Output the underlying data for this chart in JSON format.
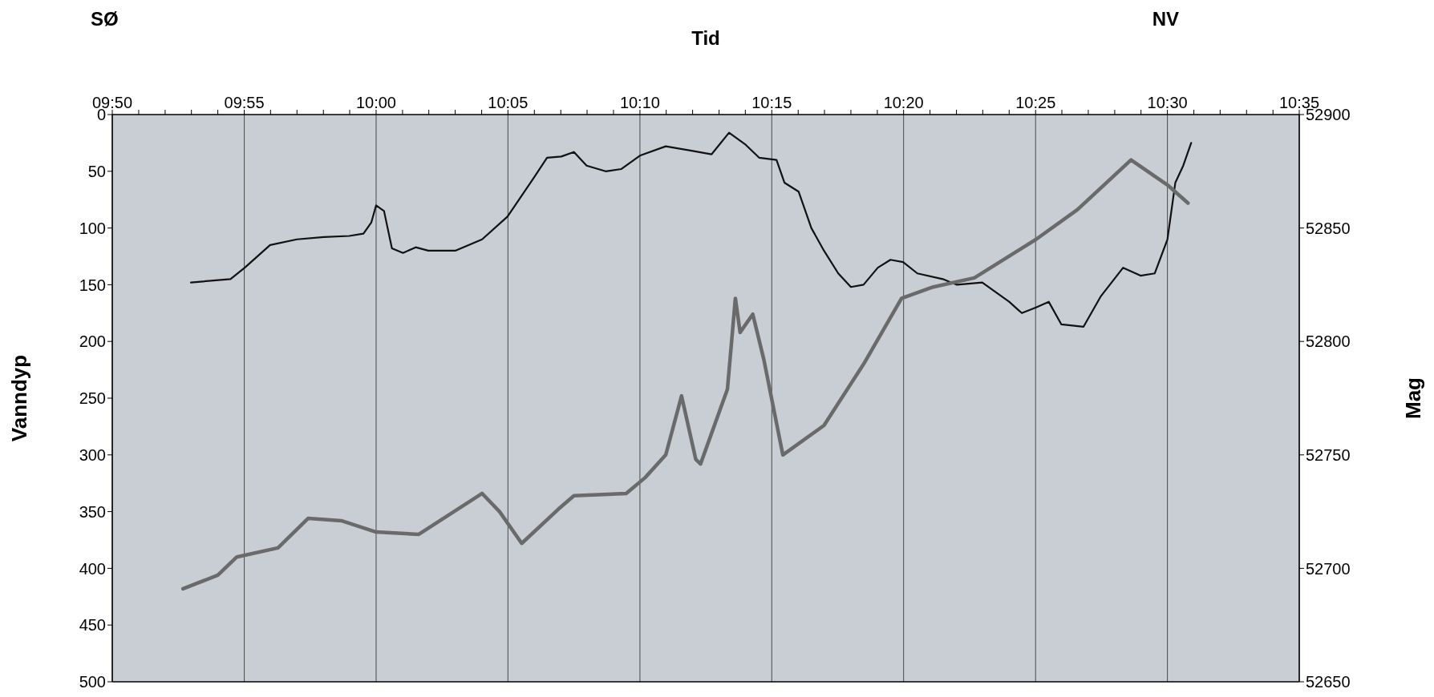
{
  "chart_data": {
    "type": "line",
    "xlabel": "Tid",
    "ylabel": "Vanndyp",
    "y2label": "Mag",
    "annotations": [
      "SØ",
      "NV"
    ],
    "xlim": [
      9.8333,
      10.5833
    ],
    "xticks": [
      {
        "value": 9.8333,
        "label": "09:50"
      },
      {
        "value": 9.85,
        "label": null
      },
      {
        "value": 9.8667,
        "label": null
      },
      {
        "value": 9.8833,
        "label": null
      },
      {
        "value": 9.9,
        "label": null
      },
      {
        "value": 9.9167,
        "label": "09:55"
      },
      {
        "value": 9.9333,
        "label": null
      },
      {
        "value": 9.95,
        "label": null
      },
      {
        "value": 9.9667,
        "label": null
      },
      {
        "value": 9.9833,
        "label": null
      },
      {
        "value": 10,
        "label": "10:00"
      },
      {
        "value": 10.0167,
        "label": null
      },
      {
        "value": 10.0333,
        "label": null
      },
      {
        "value": 10.05,
        "label": null
      },
      {
        "value": 10.0667,
        "label": null
      },
      {
        "value": 10.0833,
        "label": "10:05"
      },
      {
        "value": 10.1,
        "label": null
      },
      {
        "value": 10.1167,
        "label": null
      },
      {
        "value": 10.1333,
        "label": null
      },
      {
        "value": 10.15,
        "label": null
      },
      {
        "value": 10.1667,
        "label": "10:10"
      },
      {
        "value": 10.1833,
        "label": null
      },
      {
        "value": 10.2,
        "label": null
      },
      {
        "value": 10.2167,
        "label": null
      },
      {
        "value": 10.2333,
        "label": null
      },
      {
        "value": 10.25,
        "label": "10:15"
      },
      {
        "value": 10.2667,
        "label": null
      },
      {
        "value": 10.2833,
        "label": null
      },
      {
        "value": 10.3,
        "label": null
      },
      {
        "value": 10.3167,
        "label": null
      },
      {
        "value": 10.3333,
        "label": "10:20"
      },
      {
        "value": 10.35,
        "label": null
      },
      {
        "value": 10.3667,
        "label": null
      },
      {
        "value": 10.3833,
        "label": null
      },
      {
        "value": 10.4,
        "label": null
      },
      {
        "value": 10.4167,
        "label": "10:25"
      },
      {
        "value": 10.4333,
        "label": null
      },
      {
        "value": 10.45,
        "label": null
      },
      {
        "value": 10.4667,
        "label": null
      },
      {
        "value": 10.4833,
        "label": null
      },
      {
        "value": 10.5,
        "label": "10:30"
      },
      {
        "value": 10.5167,
        "label": null
      },
      {
        "value": 10.5333,
        "label": null
      },
      {
        "value": 10.55,
        "label": null
      },
      {
        "value": 10.5667,
        "label": null
      },
      {
        "value": 10.5833,
        "label": "10:35"
      }
    ],
    "ylim": [
      500,
      0
    ],
    "yticks": [
      0,
      50,
      100,
      150,
      200,
      250,
      300,
      350,
      400,
      450,
      500
    ],
    "y2lim": [
      52650,
      52900
    ],
    "y2ticks": [
      52650,
      52700,
      52750,
      52800,
      52850,
      52900
    ],
    "grid": "x",
    "marker": "none",
    "line_style": "solid",
    "series": [
      {
        "color": "#111111",
        "x": [
          9.883,
          9.908,
          9.917,
          9.933,
          9.95,
          9.967,
          9.983,
          9.992,
          9.997,
          10.0,
          10.005,
          10.01,
          10.017,
          10.025,
          10.033,
          10.05,
          10.067,
          10.083,
          10.1,
          10.108,
          10.117,
          10.125,
          10.133,
          10.145,
          10.155,
          10.167,
          10.183,
          10.2,
          10.212,
          10.223,
          10.233,
          10.242,
          10.253,
          10.258,
          10.267,
          10.275,
          10.283,
          10.292,
          10.3,
          10.308,
          10.317,
          10.325,
          10.333,
          10.342,
          10.358,
          10.367,
          10.383,
          10.4,
          10.408,
          10.417,
          10.425,
          10.433,
          10.447,
          10.458,
          10.472,
          10.483,
          10.492,
          10.5,
          10.505,
          10.51,
          10.515
        ],
        "values": [
          148,
          145,
          135,
          115,
          110,
          108,
          107,
          105,
          95,
          80,
          85,
          118,
          122,
          117,
          120,
          120,
          110,
          90,
          55,
          38,
          37,
          33,
          45,
          50,
          48,
          36,
          28,
          32,
          35,
          16,
          26,
          38,
          40,
          60,
          68,
          100,
          120,
          140,
          152,
          150,
          135,
          128,
          130,
          140,
          145,
          150,
          148,
          165,
          175,
          170,
          165,
          185,
          187,
          160,
          135,
          142,
          140,
          110,
          60,
          45,
          25
        ]
      },
      {
        "color": "#6a6a6a",
        "axis": "y2",
        "x": [
          9.878,
          9.9,
          9.912,
          9.938,
          9.957,
          9.978,
          10.0,
          10.027,
          10.067,
          10.078,
          10.092,
          10.115,
          10.125,
          10.158,
          10.17,
          10.183,
          10.193,
          10.202,
          10.205,
          10.222,
          10.227,
          10.23,
          10.238,
          10.245,
          10.257,
          10.283,
          10.308,
          10.332,
          10.352,
          10.378,
          10.417,
          10.443,
          10.477,
          10.5,
          10.513
        ],
        "values": [
          52691,
          52697,
          52705,
          52709,
          52722,
          52721,
          52716,
          52715,
          52733,
          52725,
          52711,
          52726,
          52732,
          52733,
          52740,
          52750,
          52776,
          52748,
          52746,
          52779,
          52819,
          52804,
          52812,
          52792,
          52750,
          52763,
          52790,
          52819,
          52824,
          52828,
          52845,
          52858,
          52880,
          52869,
          52861
        ]
      }
    ]
  }
}
